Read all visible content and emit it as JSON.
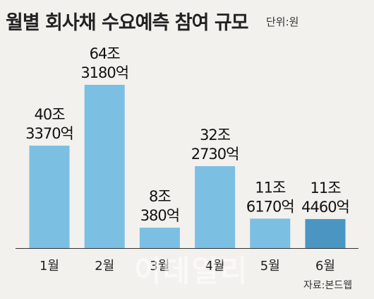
{
  "chart_data": {
    "type": "bar",
    "title": "월별 회사채 수요예측 참여 규모",
    "unit_note": "단위:원",
    "categories": [
      "1월",
      "2월",
      "3월",
      "4월",
      "5월",
      "6월"
    ],
    "values": [
      40.337,
      64.318,
      8.038,
      32.273,
      11.617,
      11.446
    ],
    "value_labels": [
      [
        "40조",
        "3370억"
      ],
      [
        "64조",
        "3180억"
      ],
      [
        "8조",
        "380억"
      ],
      [
        "32조",
        "2730억"
      ],
      [
        "11조",
        "6170억"
      ],
      [
        "11조",
        "4460억"
      ]
    ],
    "value_unit": "조원",
    "ylim": [
      0,
      70
    ],
    "grid": false,
    "bar_color": "#7bbfe3",
    "highlight_color": "#4a95c2",
    "highlight_index": 5,
    "source": "자료:본드웹",
    "watermark": "이데일리"
  }
}
